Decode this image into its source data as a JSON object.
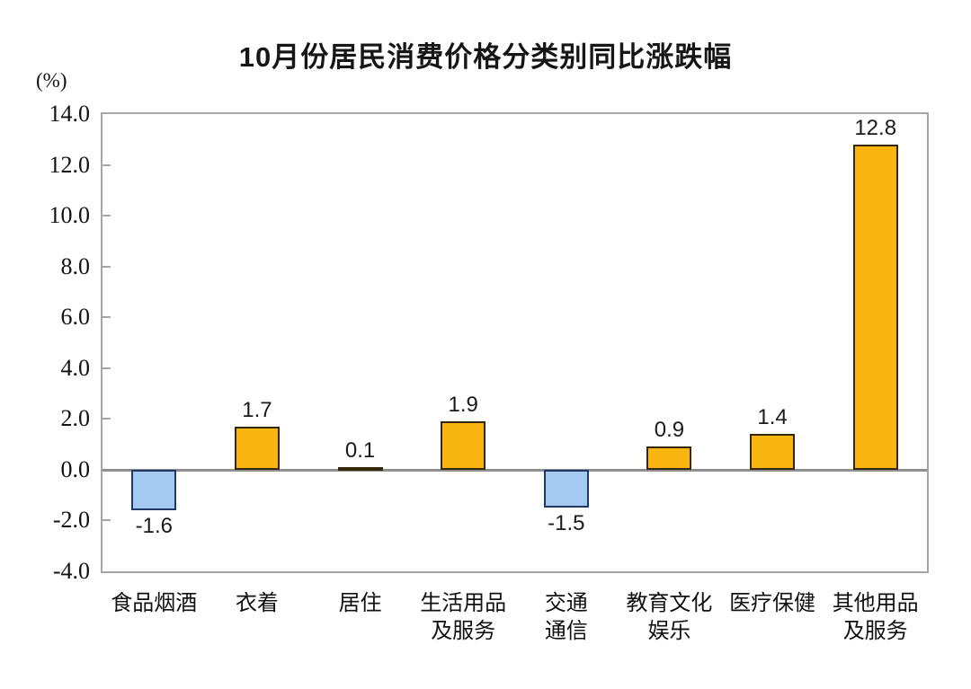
{
  "chart_data": {
    "type": "bar",
    "title": "10月份居民消费价格分类别同比涨跌幅",
    "unit": "(%)",
    "xlabel": "",
    "ylabel": "(%)",
    "categories": [
      "食品烟酒",
      "衣着",
      "居住",
      "生活用品\n及服务",
      "交通\n通信",
      "教育文化\n娱乐",
      "医疗保健",
      "其他用品\n及服务"
    ],
    "values": [
      -1.6,
      1.7,
      0.1,
      1.9,
      -1.5,
      0.9,
      1.4,
      12.8
    ],
    "ylim": [
      -4.0,
      14.0
    ],
    "ytick_step": 2.0,
    "ytick_labels": [
      "14.0",
      "12.0",
      "10.0",
      "8.0",
      "6.0",
      "4.0",
      "2.0",
      "0.0",
      "-2.0",
      "-4.0"
    ],
    "grid": false,
    "legend": "none",
    "colors": {
      "positive_fill": "#f9b50f",
      "positive_border": "#33290a",
      "negative_fill": "#a4caf2",
      "negative_border": "#1f3864",
      "plot_border": "#a6a6a6",
      "zero_line": "#8f8f8f",
      "text": "#111111"
    }
  }
}
